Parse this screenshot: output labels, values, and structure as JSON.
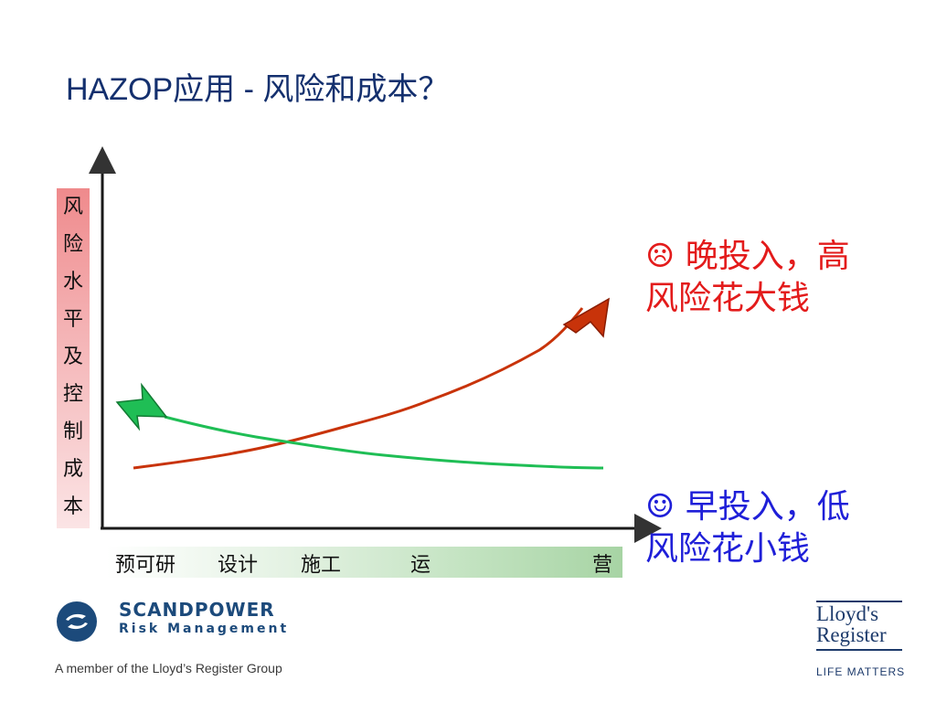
{
  "title": "HAZOP应用 - 风险和成本？",
  "y_axis": {
    "label_chars": [
      "风",
      "险",
      "水",
      "平",
      "及",
      "控",
      "制",
      "成",
      "本"
    ]
  },
  "phases": {
    "p1": "预可研",
    "p2": "设计",
    "p3": "施工",
    "p4": "运",
    "p5": "营"
  },
  "callouts": {
    "late_icon": "frown-face",
    "late_line1": "☹ 晚投入，高",
    "late_line2": "风险花大钱",
    "early_icon": "smile-face",
    "early_line1": "☺ 早投入，低",
    "early_line2": "风险花小钱"
  },
  "chart_data": {
    "type": "line",
    "series": [
      {
        "color": "#c8330a",
        "trend": "rising"
      },
      {
        "color": "#1fbe55",
        "trend": "falling"
      }
    ],
    "colors": {
      "late": "#e31b1b",
      "early": "#1f1fd8",
      "axis": "#1a1a1a"
    }
  },
  "footer": {
    "brand_name": "SCANDPOWER",
    "brand_sub": "Risk Management",
    "member_text": "A member of the Lloyd’s Register Group",
    "lr_logo_line1": "Lloyd's",
    "lr_logo_line2": "Register",
    "lr_tagline": "LIFE MATTERS"
  }
}
